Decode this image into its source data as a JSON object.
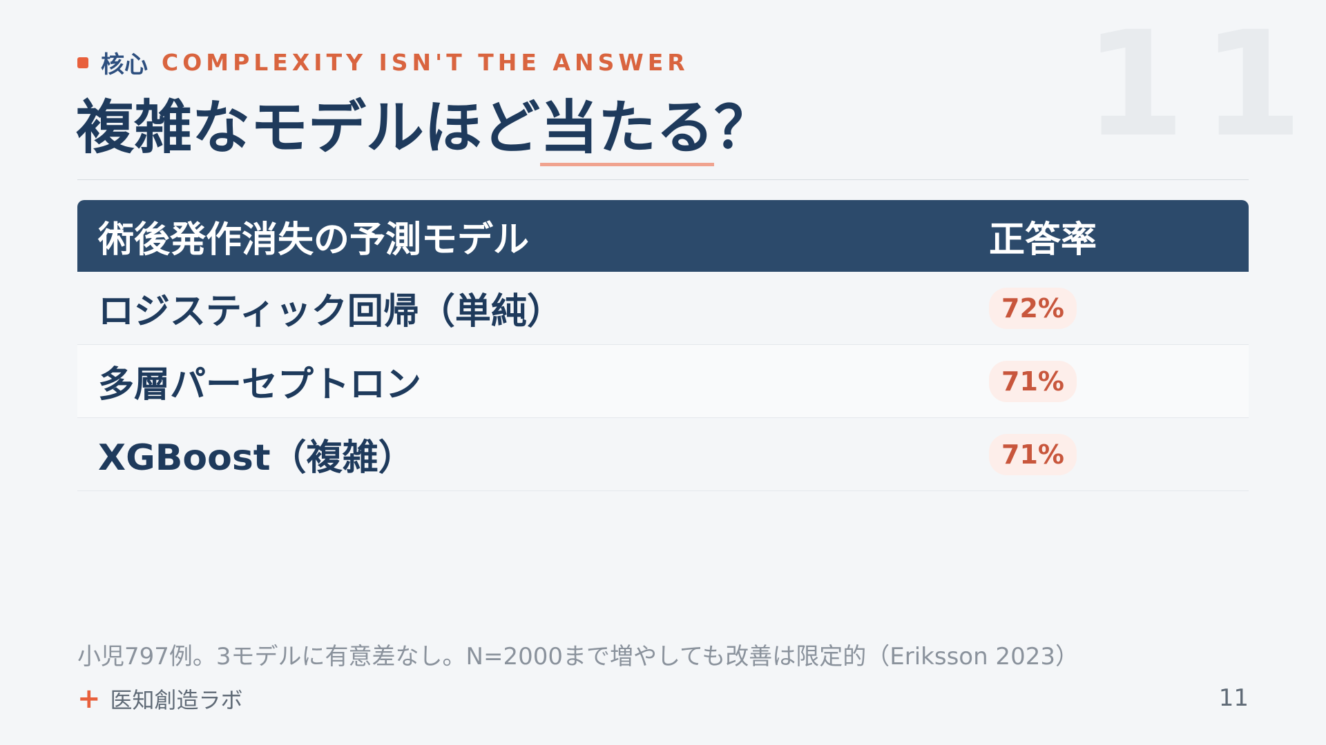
{
  "slide": {
    "background_number": "11",
    "eyebrow_jp": "核心",
    "eyebrow_en": "COMPLEXITY ISN'T THE ANSWER",
    "title_pre": "複雑なモデルほど",
    "title_underlined": "当たる",
    "title_post": "？"
  },
  "table": {
    "header_model": "術後発作消失の予測モデル",
    "header_accuracy": "正答率",
    "rows": [
      {
        "model": "ロジスティック回帰（単純）",
        "accuracy": "72%"
      },
      {
        "model": "多層パーセプトロン",
        "accuracy": "71%"
      },
      {
        "model": "XGBoost（複雑）",
        "accuracy": "71%"
      }
    ]
  },
  "footnote": "小児797例。3モデルに有意差なし。N=2000まで増やしても改善は限定的（Eriksson 2023）",
  "footer": {
    "brand": "医知創造ラボ",
    "page_number": "11"
  },
  "colors": {
    "accent": "#e8603c",
    "navy": "#1e3a5c",
    "header_bg": "#2c4a6b",
    "pill_bg": "#fdeeea"
  },
  "icons": {
    "eyebrow_marker": "square-marker-icon",
    "brand_marker": "plus-icon"
  }
}
